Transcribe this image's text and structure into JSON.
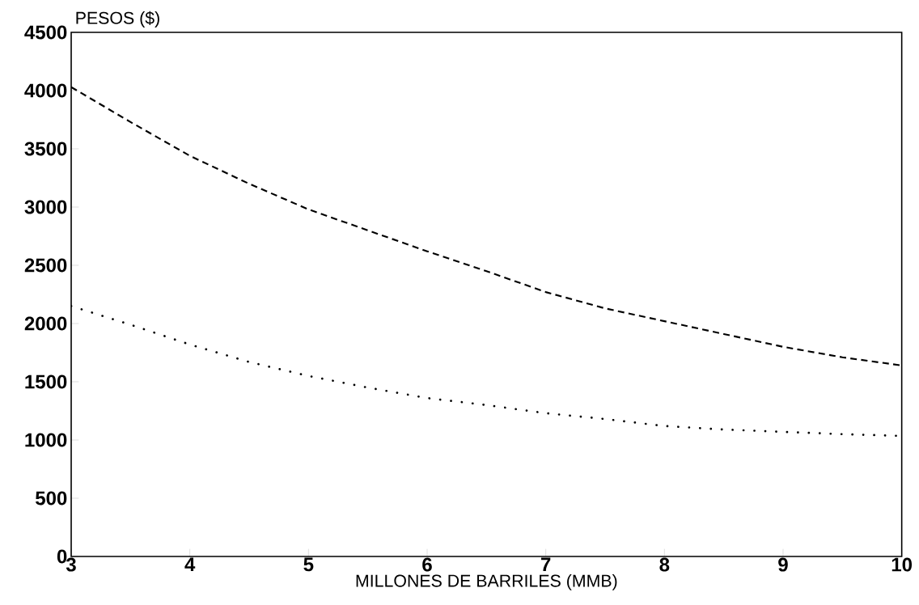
{
  "chart_data": {
    "type": "line",
    "xlabel": "MILLONES DE BARRILES (MMB)",
    "ylabel": "PESOS ($)",
    "xlim": [
      3,
      10
    ],
    "ylim": [
      0,
      4500
    ],
    "xticks": [
      3,
      4,
      5,
      6,
      7,
      8,
      9,
      10
    ],
    "yticks": [
      0,
      500,
      1000,
      1500,
      2000,
      2500,
      3000,
      3500,
      4000,
      4500
    ],
    "x": [
      3,
      3.5,
      4,
      4.5,
      5,
      5.5,
      6,
      6.5,
      7,
      7.5,
      8,
      8.5,
      9,
      9.5,
      10
    ],
    "series": [
      {
        "color": "#000000",
        "line_style": "dashed",
        "values": [
          4030,
          3730,
          3440,
          3200,
          2980,
          2800,
          2620,
          2450,
          2270,
          2130,
          2020,
          1910,
          1800,
          1710,
          1640
        ]
      },
      {
        "color": "#000000",
        "line_style": "dotted",
        "values": [
          2150,
          1990,
          1820,
          1670,
          1550,
          1450,
          1360,
          1300,
          1230,
          1180,
          1120,
          1090,
          1070,
          1050,
          1035
        ]
      }
    ]
  }
}
